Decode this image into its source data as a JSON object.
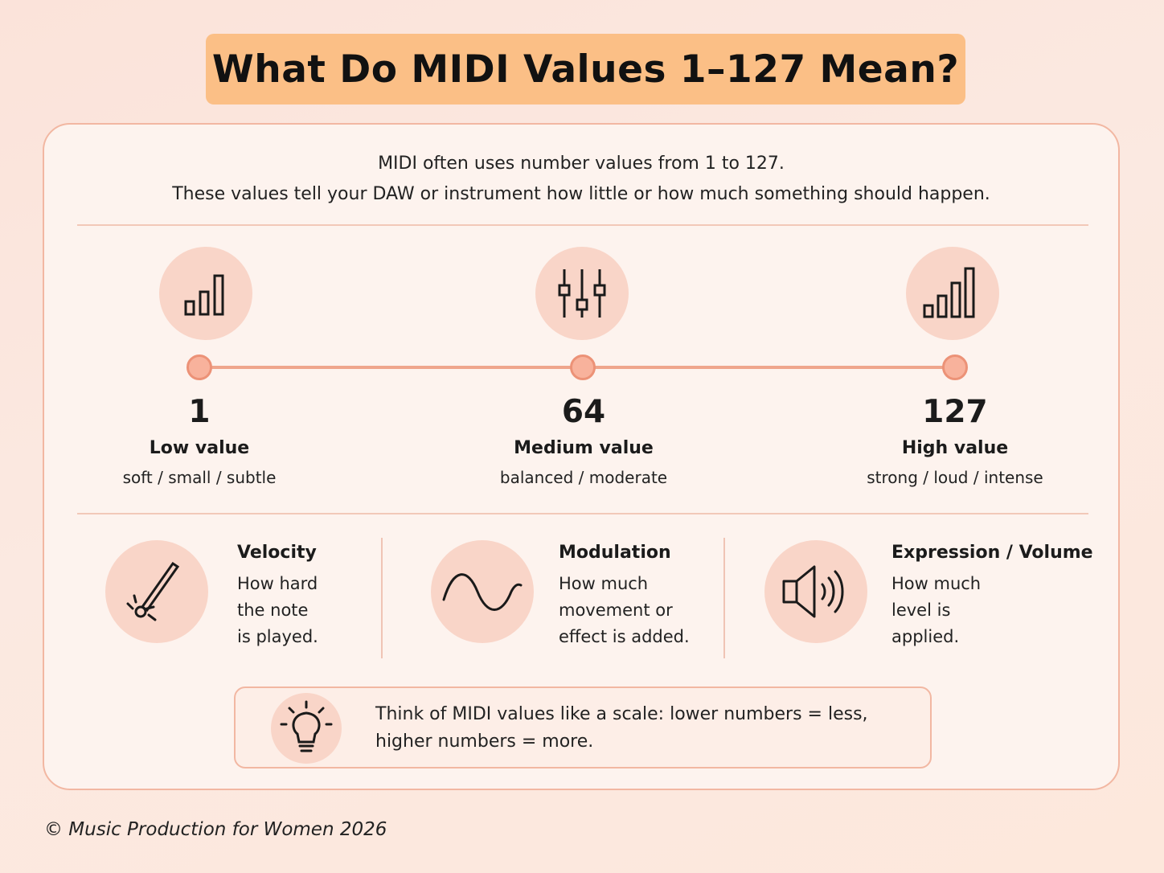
{
  "title": "What Do MIDI Values 1–127 Mean?",
  "intro": {
    "line1": "MIDI often uses number values from 1 to 127.",
    "line2": "These values tell your DAW or instrument how little or how much something should happen."
  },
  "scale": [
    {
      "number": "1",
      "label": "Low value",
      "description": "soft / small / subtle",
      "icon": "bars-low-icon"
    },
    {
      "number": "64",
      "label": "Medium value",
      "description": "balanced / moderate",
      "icon": "faders-icon"
    },
    {
      "number": "127",
      "label": "High value",
      "description": "strong / loud / intense",
      "icon": "bars-high-icon"
    }
  ],
  "categories": [
    {
      "title": "Velocity",
      "lines": [
        "How hard",
        "the note",
        "is played."
      ],
      "icon": "drumstick-icon"
    },
    {
      "title": "Modulation",
      "lines": [
        "How much",
        "movement or",
        "effect is added."
      ],
      "icon": "sine-wave-icon"
    },
    {
      "title": "Expression / Volume",
      "lines": [
        "How much",
        "level is",
        "applied."
      ],
      "icon": "speaker-icon"
    }
  ],
  "tip": {
    "line1": "Think of MIDI values like a scale: lower numbers = less,",
    "line2": "higher numbers = more.",
    "icon": "lightbulb-icon"
  },
  "footer": "© Music Production for Women 2026",
  "colors": {
    "background": "#fbe5dc",
    "title_banner": "#fbbf86",
    "card": "#fdf3ee",
    "card_border": "#f2b7a2",
    "icon_circle": "#f9d5c8",
    "scale_line": "#efa58c",
    "scale_dot": "#f8b29c"
  }
}
